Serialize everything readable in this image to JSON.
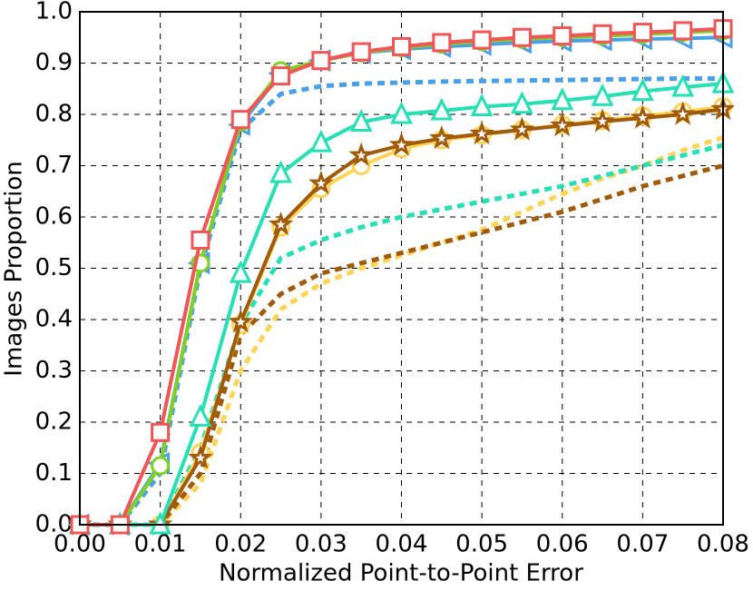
{
  "chart_data": {
    "type": "line",
    "x_label": "Normalized Point-to-Point Error",
    "y_label": "Images Proportion",
    "x": [
      0,
      0.005,
      0.01,
      0.015,
      0.02,
      0.025,
      0.03,
      0.035,
      0.04,
      0.045,
      0.05,
      0.055,
      0.06,
      0.065,
      0.07,
      0.075,
      0.08
    ],
    "xlim": [
      0,
      0.08
    ],
    "xticks": [
      {
        "value": 0,
        "label": "0.00"
      },
      0.01,
      0.02,
      0.03,
      0.04,
      0.05,
      0.06,
      0.07,
      0.08
    ],
    "ylim": [
      0,
      1
    ],
    "yticks": [
      {
        "value": 0,
        "label": "0.0"
      },
      0.1,
      0.2,
      0.3,
      0.4,
      0.5,
      0.6,
      0.7,
      0.8,
      0.9,
      {
        "value": 1,
        "label": "1.0"
      }
    ],
    "grid": true,
    "series": [
      {
        "color": "#ffd454",
        "line": "dashed",
        "marker": "none",
        "values": [
          0,
          0,
          0,
          0.08,
          0.3,
          0.42,
          0.47,
          0.5,
          0.525,
          0.55,
          0.575,
          0.61,
          0.645,
          0.675,
          0.7,
          0.73,
          0.755
        ]
      },
      {
        "color": "#a05a0a",
        "line": "dashed",
        "marker": "none",
        "values": [
          0,
          0,
          0,
          0.1,
          0.37,
          0.45,
          0.49,
          0.51,
          0.53,
          0.55,
          0.57,
          0.59,
          0.61,
          0.635,
          0.66,
          0.68,
          0.7
        ]
      },
      {
        "color": "#24e0b4",
        "line": "dashed",
        "marker": "none",
        "values": [
          0,
          0,
          0,
          0.15,
          0.39,
          0.52,
          0.555,
          0.58,
          0.6,
          0.615,
          0.63,
          0.645,
          0.66,
          0.68,
          0.7,
          0.72,
          0.74
        ]
      },
      {
        "color": "#48a0e8",
        "line": "dashed",
        "marker": "none",
        "values": [
          0,
          0,
          0.1,
          0.5,
          0.77,
          0.84,
          0.855,
          0.86,
          0.862,
          0.864,
          0.865,
          0.866,
          0.867,
          0.868,
          0.869,
          0.87,
          0.87
        ]
      },
      {
        "color": "#ffd454",
        "line": "solid",
        "marker": "circle",
        "values": [
          0,
          0,
          0,
          0.14,
          0.39,
          0.58,
          0.655,
          0.7,
          0.733,
          0.75,
          0.76,
          0.77,
          0.78,
          0.788,
          0.797,
          0.805,
          0.815
        ]
      },
      {
        "color": "#a05a0a",
        "line": "solid",
        "marker": "star",
        "values": [
          0,
          0,
          0,
          0.13,
          0.395,
          0.585,
          0.665,
          0.72,
          0.74,
          0.753,
          0.762,
          0.77,
          0.778,
          0.786,
          0.793,
          0.8,
          0.81
        ]
      },
      {
        "color": "#24e0b4",
        "line": "solid",
        "marker": "triangle",
        "values": [
          0,
          0,
          0,
          0.21,
          0.49,
          0.685,
          0.745,
          0.785,
          0.8,
          0.807,
          0.815,
          0.82,
          0.827,
          0.835,
          0.845,
          0.853,
          0.86
        ]
      },
      {
        "color": "#48a0e8",
        "line": "solid",
        "marker": "triangle-left",
        "values": [
          0,
          0,
          0.12,
          0.51,
          0.78,
          0.88,
          0.905,
          0.92,
          0.927,
          0.932,
          0.936,
          0.94,
          0.943,
          0.945,
          0.947,
          0.948,
          0.95
        ]
      },
      {
        "color": "#80d024",
        "line": "solid",
        "marker": "circle",
        "values": [
          0,
          0,
          0.115,
          0.51,
          0.785,
          0.885,
          0.905,
          0.92,
          0.93,
          0.937,
          0.942,
          0.947,
          0.95,
          0.953,
          0.956,
          0.96,
          0.963
        ]
      },
      {
        "color": "#f25555",
        "line": "solid",
        "marker": "square",
        "values": [
          0,
          0,
          0.18,
          0.555,
          0.79,
          0.875,
          0.905,
          0.922,
          0.932,
          0.94,
          0.945,
          0.95,
          0.953,
          0.957,
          0.96,
          0.963,
          0.967
        ]
      }
    ]
  }
}
